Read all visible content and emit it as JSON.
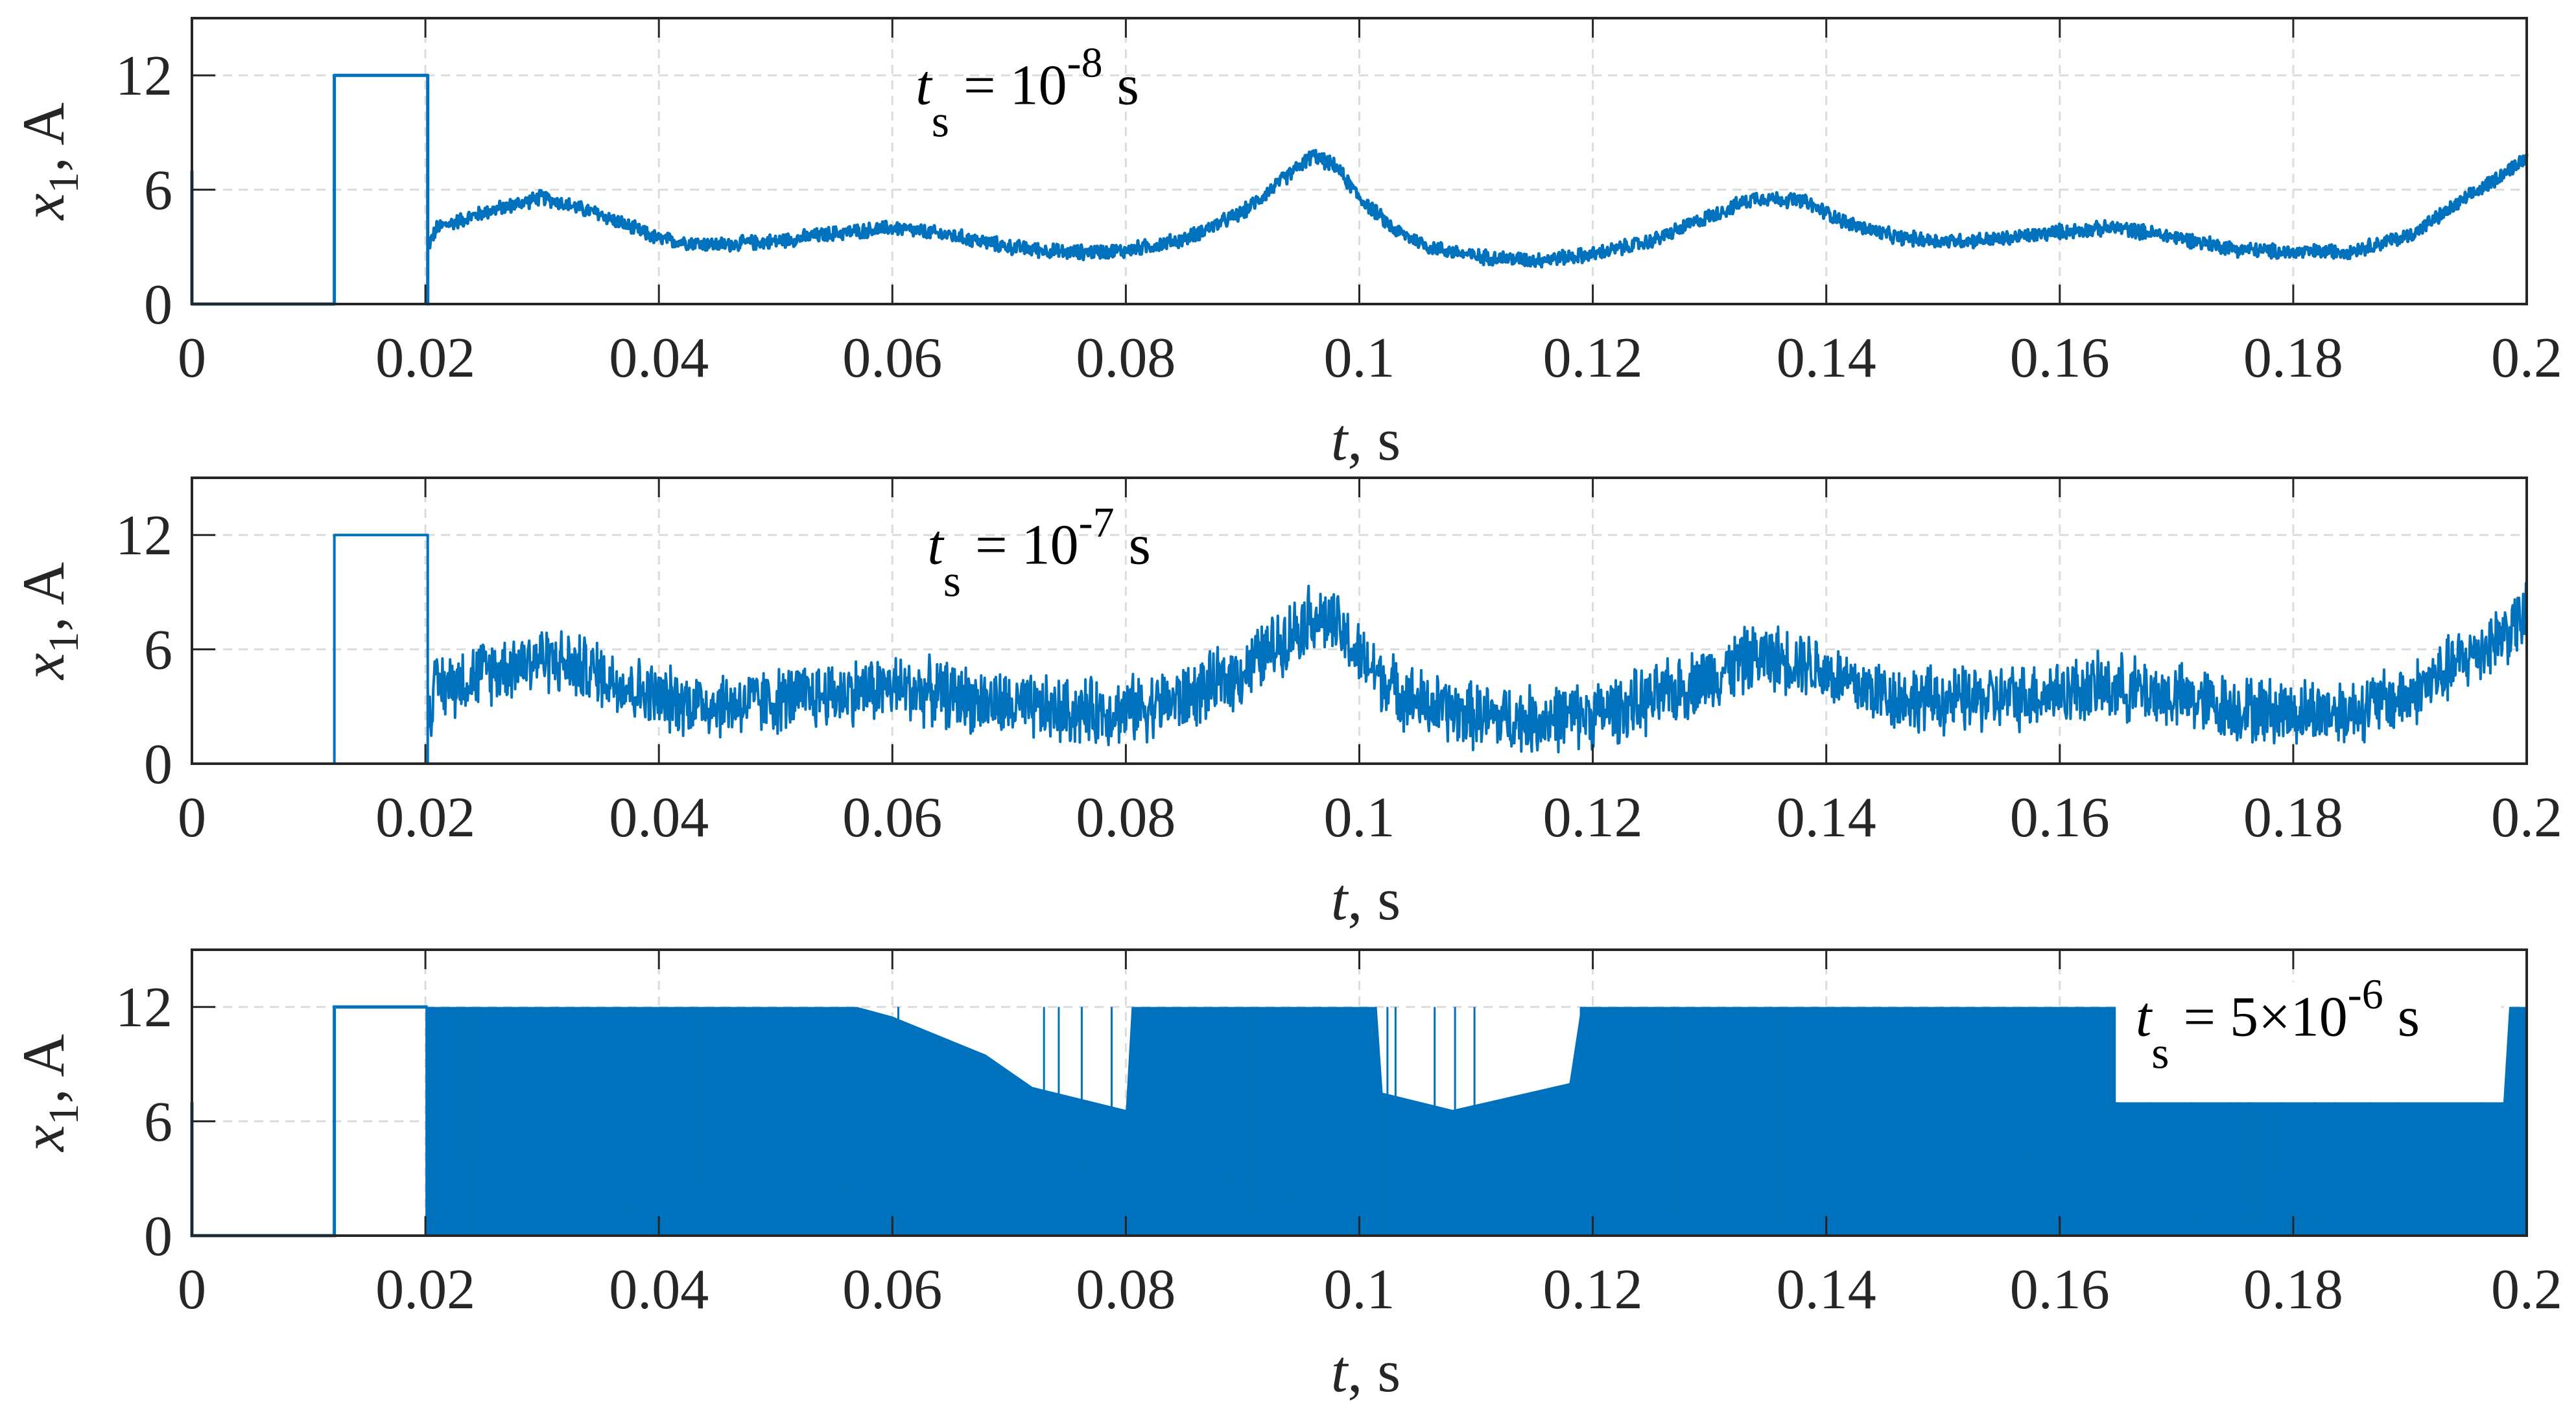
{
  "chart_data": [
    {
      "type": "line",
      "panel": 1,
      "xlabel": {
        "var": "t",
        "rest": ", s"
      },
      "ylabel": {
        "var": "x",
        "sub": "1",
        "rest": ", A"
      },
      "xlim": [
        0,
        0.2
      ],
      "ylim": [
        0,
        15
      ],
      "xticks": [
        0,
        0.02,
        0.04,
        0.06,
        0.08,
        0.1,
        0.12,
        0.14,
        0.16,
        0.18,
        0.2
      ],
      "xtick_labels": [
        "0",
        "0.02",
        "0.04",
        "0.06",
        "0.08",
        "0.1",
        "0.12",
        "0.14",
        "0.16",
        "0.18",
        "0.2"
      ],
      "yticks": [
        0,
        6,
        12
      ],
      "ytick_labels": [
        "0",
        "6",
        "12"
      ],
      "grid": true,
      "annotation": {
        "var": "t",
        "sub": "s",
        "eq": " = 10",
        "sup": "-8",
        "unit": " s",
        "t": 0.062,
        "y": 10.5
      },
      "noise_amplitude": 0.45,
      "mode": "noisy-line"
    },
    {
      "type": "line",
      "panel": 2,
      "xlabel": {
        "var": "t",
        "rest": ", s"
      },
      "ylabel": {
        "var": "x",
        "sub": "1",
        "rest": ", A"
      },
      "xlim": [
        0,
        0.2
      ],
      "ylim": [
        0,
        15
      ],
      "xticks": [
        0,
        0.02,
        0.04,
        0.06,
        0.08,
        0.1,
        0.12,
        0.14,
        0.16,
        0.18,
        0.2
      ],
      "xtick_labels": [
        "0",
        "0.02",
        "0.04",
        "0.06",
        "0.08",
        "0.1",
        "0.12",
        "0.14",
        "0.16",
        "0.18",
        "0.2"
      ],
      "yticks": [
        0,
        6,
        12
      ],
      "ytick_labels": [
        "0",
        "6",
        "12"
      ],
      "grid": true,
      "annotation": {
        "var": "t",
        "sub": "s",
        "eq": " = 10",
        "sup": "-7",
        "unit": " s",
        "t": 0.063,
        "y": 10.5
      },
      "noise_amplitude": 2.0,
      "mode": "noisy-line"
    },
    {
      "type": "area",
      "panel": 3,
      "xlabel": {
        "var": "t",
        "rest": ", s"
      },
      "ylabel": {
        "var": "x",
        "sub": "1",
        "rest": ", A"
      },
      "xlim": [
        0,
        0.2
      ],
      "ylim": [
        0,
        15
      ],
      "xticks": [
        0,
        0.02,
        0.04,
        0.06,
        0.08,
        0.1,
        0.12,
        0.14,
        0.16,
        0.18,
        0.2
      ],
      "xtick_labels": [
        "0",
        "0.02",
        "0.04",
        "0.06",
        "0.08",
        "0.1",
        "0.12",
        "0.14",
        "0.16",
        "0.18",
        "0.2"
      ],
      "yticks": [
        0,
        6,
        12
      ],
      "ytick_labels": [
        "0",
        "6",
        "12"
      ],
      "grid": true,
      "annotation": {
        "var": "t",
        "sub": "s",
        "eq": " = 5×10",
        "sup": "-6",
        "unit": " s",
        "t": 0.1665,
        "y": 10.5
      },
      "mode": "switching-band",
      "upper_envelope": {
        "t": [
          0.02,
          0.057,
          0.06,
          0.068,
          0.072,
          0.08,
          0.0805,
          0.085,
          0.086,
          0.1015,
          0.102,
          0.108,
          0.118,
          0.119,
          0.165,
          0.1651,
          0.198,
          0.1985,
          0.2
        ],
        "y": [
          12,
          12,
          11.5,
          9.5,
          7.8,
          6.6,
          12,
          12,
          12,
          12,
          7.5,
          6.6,
          8,
          12,
          12,
          7,
          7,
          12,
          12
        ]
      }
    }
  ],
  "series_common": {
    "color": "#0072bd",
    "startup": {
      "t": [
        0,
        0,
        0.0122,
        0.0122,
        0.0202,
        0.0202
      ],
      "y": [
        7,
        0,
        0,
        12,
        12,
        0
      ]
    },
    "baseline": {
      "t": [
        0.0202,
        0.021,
        0.025,
        0.03,
        0.035,
        0.04,
        0.045,
        0.05,
        0.055,
        0.06,
        0.065,
        0.07,
        0.075,
        0.08,
        0.085,
        0.09,
        0.094,
        0.096,
        0.098,
        0.1,
        0.103,
        0.106,
        0.11,
        0.115,
        0.12,
        0.125,
        0.13,
        0.134,
        0.138,
        0.142,
        0.146,
        0.15,
        0.155,
        0.16,
        0.165,
        0.17,
        0.175,
        0.18,
        0.185,
        0.19,
        0.195,
        0.2
      ],
      "y": [
        3,
        4,
        4.8,
        5.6,
        4.7,
        3.4,
        3.1,
        3.3,
        3.7,
        4.0,
        3.6,
        3.0,
        2.7,
        2.8,
        3.4,
        4.8,
        6.8,
        7.8,
        7.2,
        5.6,
        3.9,
        3.0,
        2.5,
        2.3,
        2.6,
        3.3,
        4.6,
        5.6,
        5.4,
        4.2,
        3.5,
        3.3,
        3.4,
        3.8,
        4.0,
        3.5,
        2.9,
        2.7,
        2.8,
        3.6,
        5.6,
        7.7
      ]
    }
  }
}
